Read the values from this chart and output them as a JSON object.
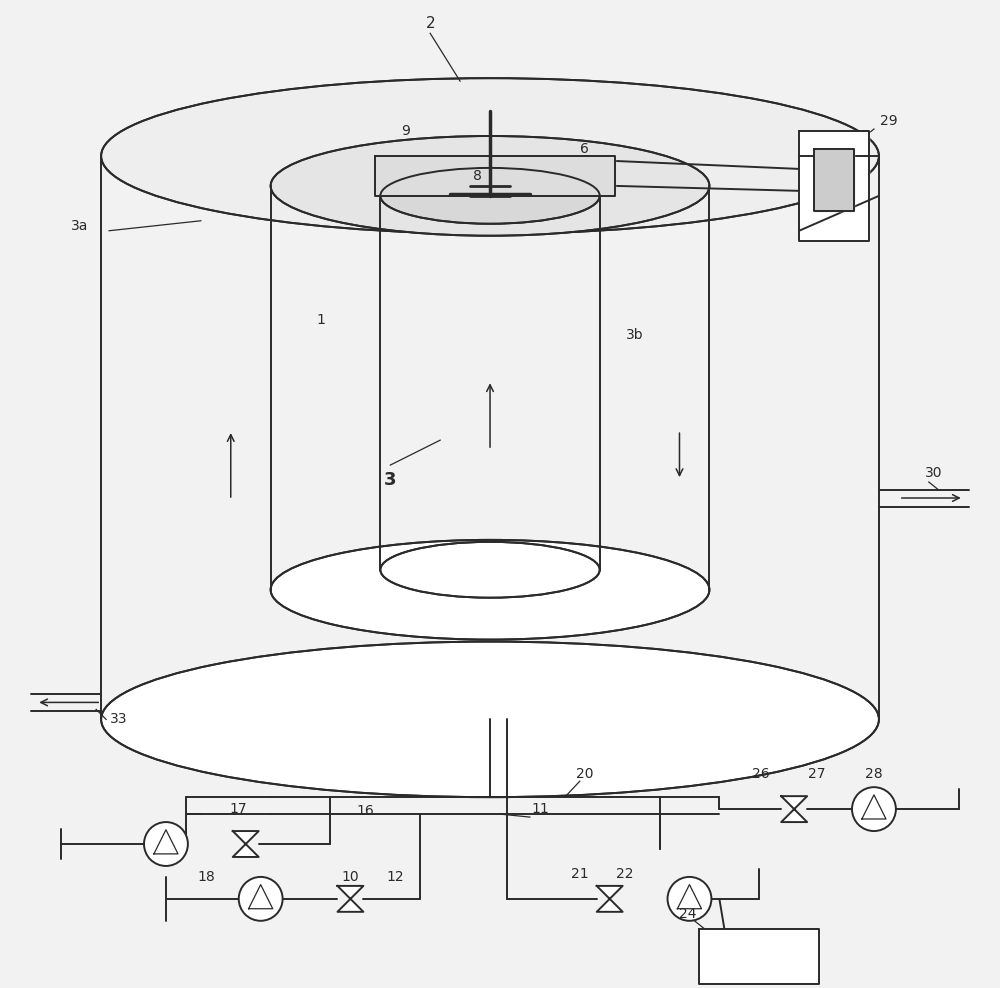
{
  "bg_color": "#f2f2f2",
  "line_color": "#2a2a2a",
  "fig_width": 10.0,
  "fig_height": 9.88
}
